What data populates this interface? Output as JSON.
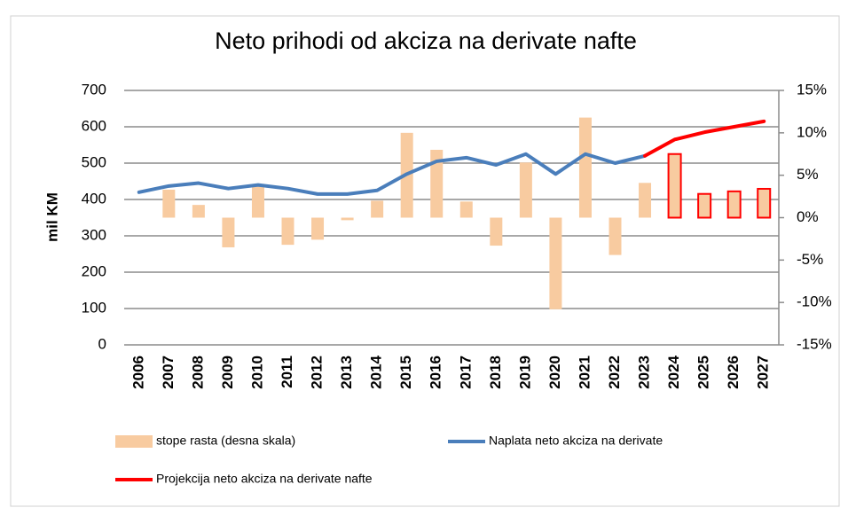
{
  "chart_data": {
    "type": "bar_line",
    "title": "Neto prihodi od akciza na derivate nafte",
    "y_label": "mil KM",
    "categories": [
      "2006",
      "2007",
      "2008",
      "2009",
      "2010",
      "2011",
      "2012",
      "2013",
      "2014",
      "2015",
      "2016",
      "2017",
      "2018",
      "2019",
      "2020",
      "2021",
      "2022",
      "2023",
      "2024",
      "2025",
      "2026",
      "2027"
    ],
    "series": [
      {
        "name": "stope rasta (desna skala)",
        "kind": "bar",
        "axis": "y2",
        "color": "#f8cba0",
        "edge_colors": [
          null,
          null,
          null,
          null,
          null,
          null,
          null,
          null,
          null,
          null,
          null,
          null,
          null,
          null,
          null,
          null,
          null,
          null,
          "#ff0000",
          "#ff0000",
          "#ff0000",
          "#ff0000"
        ],
        "values": [
          null,
          3.3,
          1.5,
          -3.5,
          3.7,
          -3.2,
          -2.6,
          -0.3,
          2,
          10,
          8,
          1.9,
          -3.3,
          6.5,
          -10.8,
          11.8,
          -4.4,
          4.1,
          7.5,
          2.8,
          3.1,
          3.4
        ]
      },
      {
        "name": "Naplata neto akciza na derivate",
        "kind": "line",
        "color": "#4a7ebb",
        "values": [
          420,
          437,
          445,
          430,
          440,
          430,
          415,
          415,
          425,
          470,
          505,
          515,
          495,
          525,
          470,
          525,
          500,
          520,
          null,
          null,
          null,
          null
        ]
      },
      {
        "name": "Projekcija neto akciza na derivate nafte",
        "kind": "line",
        "color": "#ff0000",
        "values": [
          null,
          null,
          null,
          null,
          null,
          null,
          null,
          null,
          null,
          null,
          null,
          null,
          null,
          null,
          null,
          null,
          null,
          520,
          565,
          585,
          600,
          615
        ]
      }
    ],
    "ylim": [
      0,
      700
    ],
    "yticks": [
      0,
      100,
      200,
      300,
      400,
      500,
      600,
      700
    ],
    "y2lim": [
      -15,
      15
    ],
    "y2ticks": [
      {
        "value": 15,
        "label": "15%"
      },
      {
        "value": 10,
        "label": "10%"
      },
      {
        "value": 5,
        "label": "5%"
      },
      {
        "value": 0,
        "label": "0%"
      },
      {
        "value": -5,
        "label": "-5%"
      },
      {
        "value": -10,
        "label": "-10%"
      },
      {
        "value": -15,
        "label": "-15%"
      }
    ],
    "grid": true
  }
}
